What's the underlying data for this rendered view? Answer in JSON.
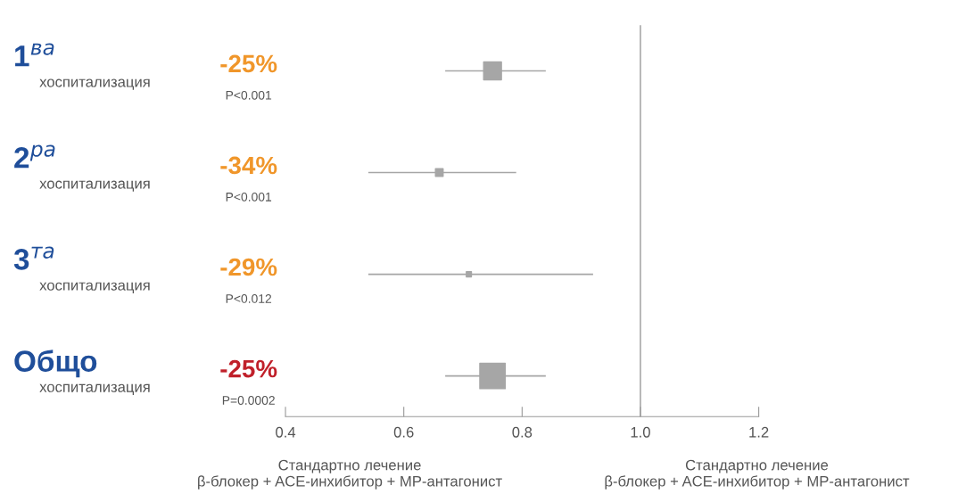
{
  "chart_data": {
    "type": "bubble",
    "orientation": "horizontal",
    "categories": [
      "1$^{ва}$\nхоспитализация",
      "2$^{ра}$\nхоспитализация",
      "3$^{та}$\nхоспитализация",
      "Общо\nхоспитализация"
    ],
    "values": [
      0.75,
      0.66,
      0.71,
      0.75
    ],
    "errors": [
      [
        0.67,
        0.84
      ],
      [
        0.54,
        0.79
      ],
      [
        0.54,
        0.92
      ],
      [
        0.67,
        0.84
      ]
    ],
    "sizes": [
      0.49,
      0.09,
      0.04,
      1
    ],
    "color": "#a6a6a6",
    "marker": "square",
    "annotations": [
      "-25%",
      "P<0.001",
      "-34%",
      "P<0.001",
      "-29%",
      "P<0.012",
      "-25%",
      "P=0.0002",
      "Стандартно лечение\nβ-блокер + ACE-инхибитор + MP-антагонист",
      "Стандартно лечение\nβ-блокер + ACE-инхибитор + MP-антагонист"
    ],
    "ref_lines": [
      {
        "axis": "x",
        "value": 1.0,
        "color": "#999999"
      }
    ],
    "xlim": [
      0.4,
      1.2
    ],
    "xticks": [
      0.4,
      0.6,
      0.8,
      {
        "value": 1,
        "label": "1.0"
      },
      1.2
    ],
    "tick_labels": "x",
    "grid": false
  }
}
